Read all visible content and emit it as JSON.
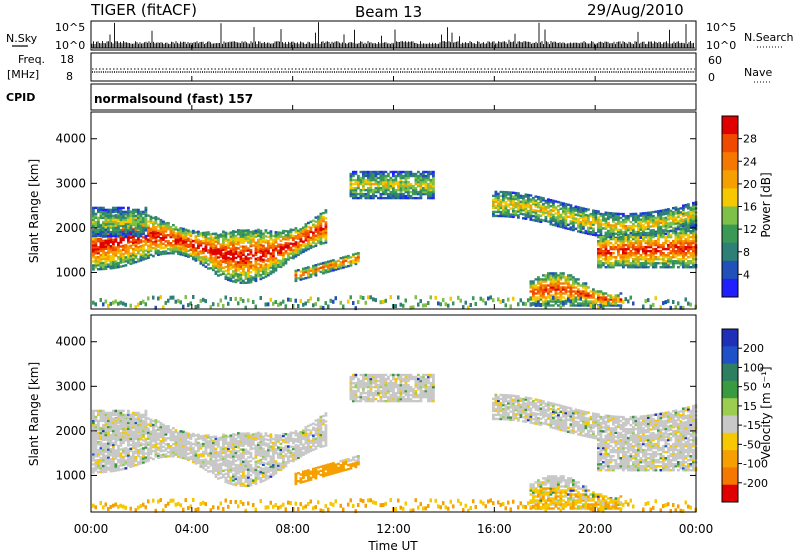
{
  "header": {
    "radar": "TIGER (fitACF)",
    "beam": "Beam 13",
    "date": "29/Aug/2010"
  },
  "strips": {
    "nsky_label": "N.Sky",
    "nsearch_label": "N.Search",
    "nsky_top": "10^5",
    "nsky_bottom": "10^0",
    "nsearch_top": "10^5",
    "nsearch_bottom": "10^0",
    "freq_label_line1": "Freq.",
    "freq_label_line2": "[MHz]",
    "freq_top": "18",
    "freq_bottom": "8",
    "nave_label": "Nave",
    "nave_top": "60",
    "nave_bottom": "0",
    "cpid_label": "CPID",
    "cpid_value": "normalsound (fast) 157"
  },
  "chart_data": [
    {
      "type": "heatmap",
      "panel": "power",
      "ylabel": "Slant Range [km]",
      "ylim": [
        180,
        4600
      ],
      "yticks": [
        "1000",
        "2000",
        "3000",
        "4000"
      ],
      "colorbar_label": "Power [dB]",
      "colorbar_ticks": [
        "4",
        "8",
        "12",
        "16",
        "20",
        "24",
        "28"
      ],
      "colorbar_colors": [
        "#1f1fff",
        "#2050b8",
        "#2e7f78",
        "#3a9a55",
        "#7fc048",
        "#f5c800",
        "#f5a000",
        "#f57800",
        "#f04a00",
        "#e00000"
      ],
      "echo_regions_hours": [
        {
          "t0": 0.0,
          "t1": 9.3,
          "r0": 1100,
          "r1": 2500
        },
        {
          "t0": 8.0,
          "t1": 10.5,
          "r0": 800,
          "r1": 1300
        },
        {
          "t0": 10.5,
          "t1": 13.5,
          "r0": 2600,
          "r1": 3200
        },
        {
          "t0": 16.0,
          "t1": 24.0,
          "r0": 1200,
          "r1": 3000
        },
        {
          "t0": 17.5,
          "t1": 21.0,
          "r0": 250,
          "r1": 900
        }
      ]
    },
    {
      "type": "heatmap",
      "panel": "velocity",
      "xlabel": "Time UT",
      "ylabel": "Slant Range [km]",
      "xlim": [
        0,
        24
      ],
      "xticks": [
        "00:00",
        "04:00",
        "08:00",
        "12:00",
        "16:00",
        "20:00",
        "00:00"
      ],
      "ylim": [
        180,
        4600
      ],
      "yticks": [
        "1000",
        "2000",
        "3000",
        "4000"
      ],
      "colorbar_label": "Velocity [m s⁻¹]",
      "colorbar_ticks": [
        "200",
        "100",
        "50",
        "15",
        "-15",
        "-50",
        "-100",
        "-200"
      ],
      "colorbar_colors": [
        "#1f2fb8",
        "#2050c8",
        "#2e7f60",
        "#3a9a40",
        "#9acd50",
        "#c8c8c8",
        "#f5c800",
        "#f5a000",
        "#f57800",
        "#e00000"
      ]
    }
  ]
}
